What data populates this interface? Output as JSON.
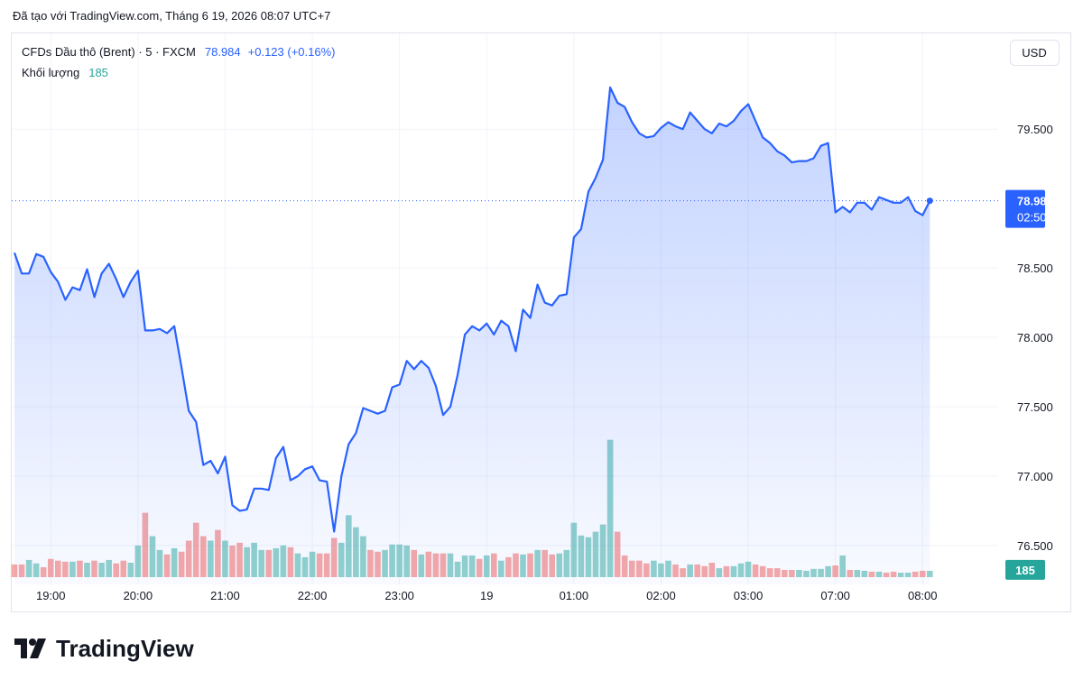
{
  "header": {
    "created": "Đã tạo với TradingView.com, Tháng 6 19, 2026 08:07 UTC+7"
  },
  "branding": "TradingView",
  "chart_data": {
    "type": "area",
    "currency": "USD",
    "change": "+0.123 (+0.16%)",
    "countdown": "02:50",
    "grid": true,
    "ylim": [
      76.22,
      80.19
    ],
    "yticks": [
      {
        "value": 76.5,
        "label": "76.500"
      },
      {
        "value": 77,
        "label": "77.000"
      },
      {
        "value": 77.5,
        "label": "77.500"
      },
      {
        "value": 78,
        "label": "78.000"
      },
      {
        "value": 78.5,
        "label": "78.500"
      },
      {
        "value": 79.5,
        "label": "79.500"
      }
    ],
    "categories": [
      null,
      null,
      null,
      null,
      null,
      "19:00",
      null,
      null,
      null,
      null,
      null,
      null,
      null,
      null,
      null,
      null,
      null,
      "20:00",
      null,
      null,
      null,
      null,
      null,
      null,
      null,
      null,
      null,
      null,
      null,
      "21:00",
      null,
      null,
      null,
      null,
      null,
      null,
      null,
      null,
      null,
      null,
      null,
      "22:00",
      null,
      null,
      null,
      null,
      null,
      null,
      null,
      null,
      null,
      null,
      null,
      "23:00",
      null,
      null,
      null,
      null,
      null,
      null,
      null,
      null,
      null,
      null,
      null,
      "19",
      null,
      null,
      null,
      null,
      null,
      null,
      null,
      null,
      null,
      null,
      null,
      "01:00",
      null,
      null,
      null,
      null,
      null,
      null,
      null,
      null,
      null,
      null,
      null,
      "02:00",
      null,
      null,
      null,
      null,
      null,
      null,
      null,
      null,
      null,
      null,
      null,
      "03:00",
      null,
      null,
      null,
      null,
      null,
      null,
      null,
      null,
      null,
      null,
      null,
      "07:00",
      null,
      null,
      null,
      null,
      null,
      null,
      null,
      null,
      null,
      null,
      null,
      "08:00",
      null
    ],
    "series": [
      {
        "name": "CFDs Dầu thô (Brent) · 5 · FXCM",
        "color": "#2962ff",
        "values": [
          78.61,
          78.46,
          78.46,
          78.6,
          78.58,
          78.47,
          78.4,
          78.27,
          78.36,
          78.34,
          78.49,
          78.29,
          78.46,
          78.53,
          78.42,
          78.29,
          78.4,
          78.48,
          78.05,
          78.05,
          78.06,
          78.03,
          78.08,
          77.78,
          77.47,
          77.39,
          77.08,
          77.11,
          77.02,
          77.14,
          76.79,
          76.75,
          76.76,
          76.91,
          76.91,
          76.9,
          77.13,
          77.21,
          76.97,
          77.0,
          77.05,
          77.07,
          76.97,
          76.96,
          76.6,
          77.0,
          77.23,
          77.31,
          77.49,
          77.47,
          77.45,
          77.47,
          77.64,
          77.66,
          77.83,
          77.77,
          77.83,
          77.78,
          77.65,
          77.44,
          77.5,
          77.73,
          78.02,
          78.08,
          78.05,
          78.1,
          78.02,
          78.12,
          78.08,
          77.9,
          78.2,
          78.14,
          78.38,
          78.25,
          78.23,
          78.3,
          78.31,
          78.72,
          78.78,
          79.05,
          79.15,
          79.28,
          79.8,
          79.69,
          79.66,
          79.55,
          79.47,
          79.44,
          79.45,
          79.51,
          79.55,
          79.52,
          79.5,
          79.62,
          79.56,
          79.5,
          79.47,
          79.54,
          79.52,
          79.56,
          79.63,
          79.68,
          79.56,
          79.44,
          79.4,
          79.34,
          79.31,
          79.26,
          79.27,
          79.27,
          79.29,
          79.38,
          79.4,
          78.9,
          78.94,
          78.9,
          78.97,
          78.97,
          78.92,
          79.01,
          78.99,
          78.97,
          78.97,
          79.01,
          78.91,
          78.88,
          78.984
        ]
      }
    ],
    "volume": {
      "name": "Khối lượng",
      "up_color": "#26a69a",
      "down_color": "#ef5350",
      "ylim": [
        0,
        16000
      ],
      "values": [
        370,
        370,
        500,
        400,
        290,
        530,
        480,
        450,
        450,
        480,
        420,
        480,
        420,
        500,
        400,
        480,
        420,
        920,
        1870,
        1190,
        790,
        660,
        840,
        740,
        1060,
        1580,
        1190,
        1060,
        1370,
        1060,
        920,
        1000,
        870,
        1000,
        790,
        790,
        840,
        920,
        870,
        690,
        580,
        740,
        690,
        690,
        1140,
        1000,
        1800,
        1450,
        1190,
        790,
        740,
        790,
        950,
        950,
        920,
        790,
        660,
        740,
        690,
        690,
        690,
        450,
        630,
        630,
        530,
        630,
        690,
        480,
        580,
        690,
        660,
        690,
        790,
        790,
        660,
        690,
        790,
        1580,
        1210,
        1160,
        1320,
        1530,
        3990,
        1320,
        630,
        480,
        480,
        400,
        480,
        400,
        480,
        370,
        260,
        370,
        370,
        320,
        420,
        260,
        320,
        320,
        400,
        450,
        370,
        320,
        260,
        260,
        210,
        210,
        210,
        185,
        240,
        240,
        320,
        340,
        630,
        210,
        210,
        185,
        160,
        160,
        130,
        160,
        130,
        130,
        160,
        185,
        185
      ]
    }
  }
}
